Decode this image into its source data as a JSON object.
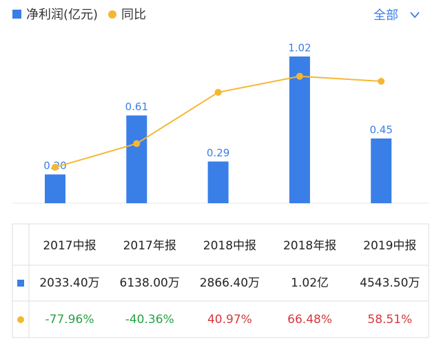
{
  "chart_data": {
    "type": "bar_line",
    "categories": [
      "2017中报",
      "2017年报",
      "2018中报",
      "2018年报",
      "2019中报"
    ],
    "series": [
      {
        "name": "净利润(亿元)",
        "type": "bar",
        "color": "#3a7ee8",
        "values": [
          0.2,
          0.61,
          0.29,
          1.02,
          0.45
        ],
        "value_labels": [
          "0.20",
          "0.61",
          "0.29",
          "1.02",
          "0.45"
        ],
        "table_labels": [
          "2033.40万",
          "6138.00万",
          "2866.40万",
          "1.02亿",
          "4543.50万"
        ]
      },
      {
        "name": "同比",
        "type": "line",
        "axis": "y2",
        "color": "#f5b731",
        "values": [
          -77.96,
          -40.36,
          40.97,
          66.48,
          58.51
        ],
        "value_labels": [
          "-77.96%",
          "-40.36%",
          "40.97%",
          "66.48%",
          "58.51%"
        ]
      }
    ],
    "ylim": [
      0,
      1.2
    ],
    "y2lim": [
      -135,
      139
    ],
    "filter": "全部"
  }
}
